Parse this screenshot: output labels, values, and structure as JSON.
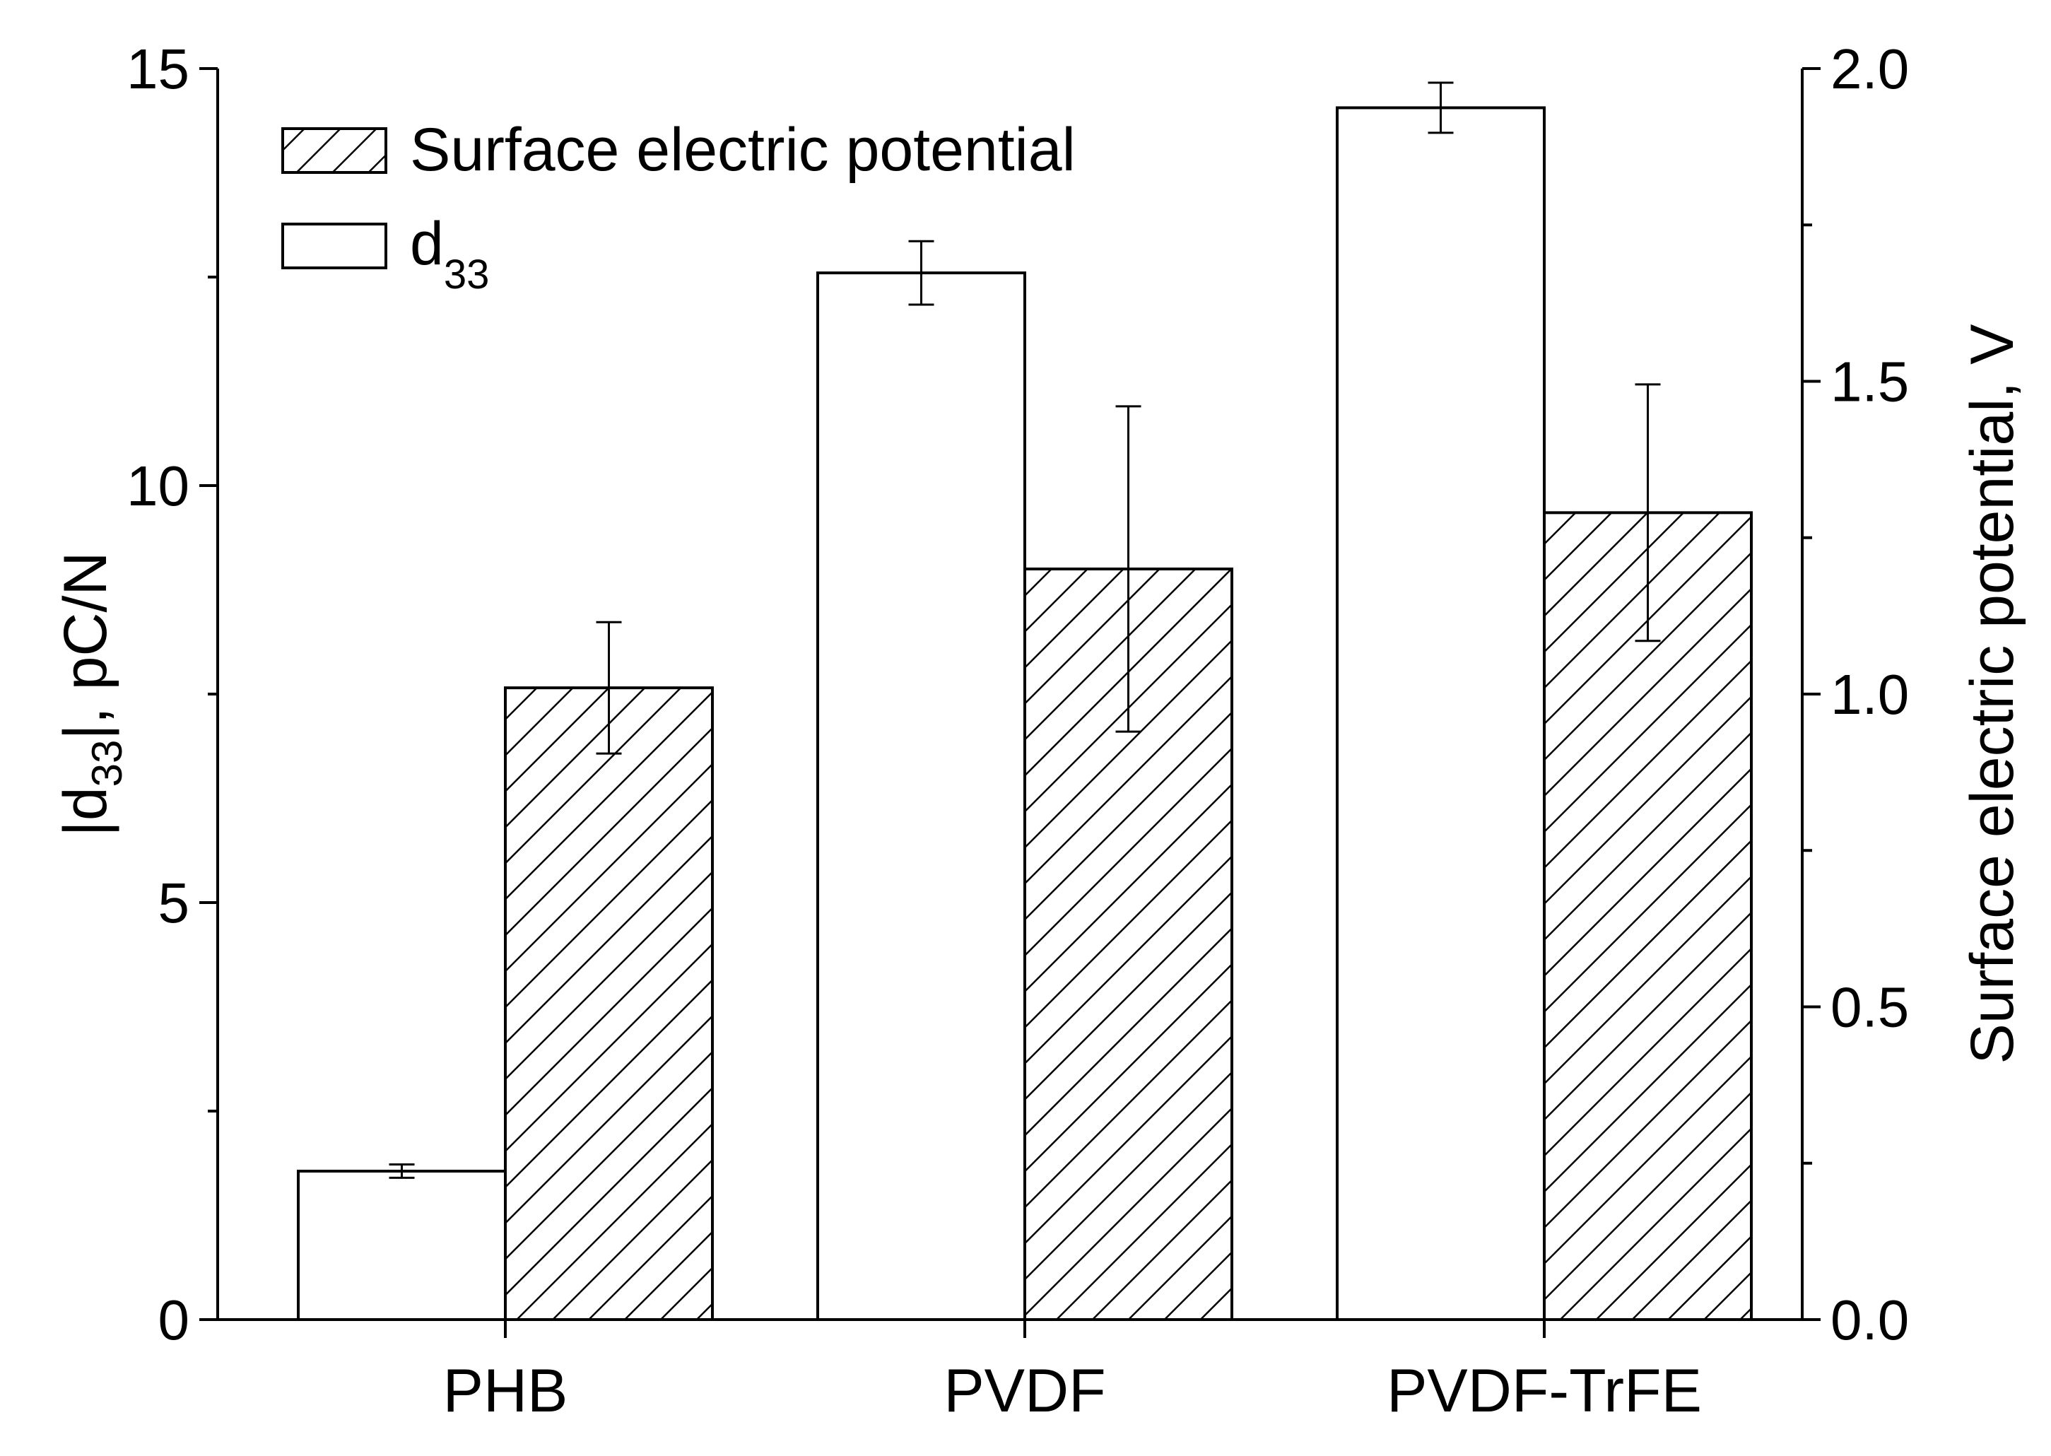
{
  "chart_data": {
    "type": "bar",
    "categories": [
      "PHB",
      "PVDF",
      "PVDF-TrFE"
    ],
    "series": [
      {
        "name": "d33",
        "legend_main": "d",
        "legend_sub": "33",
        "axis": "left",
        "pattern": "open",
        "values": [
          1.78,
          12.55,
          14.53
        ],
        "errors": [
          0.08,
          0.38,
          0.3
        ]
      },
      {
        "name": "Surface electric potential",
        "legend_main": "Surface electric potential",
        "axis": "right",
        "pattern": "hatched",
        "values": [
          1.01,
          1.2,
          1.29
        ],
        "errors": [
          0.105,
          0.26,
          0.205
        ]
      }
    ],
    "left_axis": {
      "label_prefix": "|d",
      "label_sub": "33",
      "label_suffix": "|, pC/N",
      "ylim": [
        0,
        15
      ],
      "ticks": [
        0,
        5,
        10,
        15
      ],
      "tick_labels": [
        "0",
        "5",
        "10",
        "15"
      ],
      "minor_ticks": [
        2.5,
        7.5,
        12.5
      ]
    },
    "right_axis": {
      "label": "Surface electric potential, V",
      "ylim": [
        0,
        2.0
      ],
      "ticks": [
        0,
        0.5,
        1.0,
        1.5,
        2.0
      ],
      "tick_labels": [
        "0.0",
        "0.5",
        "1.0",
        "1.5",
        "2.0"
      ],
      "minor_ticks": [
        0.25,
        0.75,
        1.25,
        1.75
      ]
    },
    "legend_position": "top-left",
    "grid": false
  }
}
